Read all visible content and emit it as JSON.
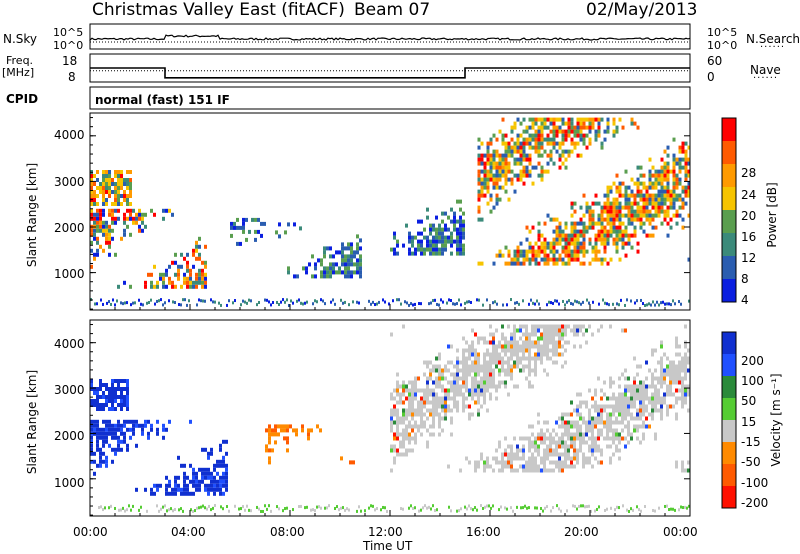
{
  "header": {
    "station": "Christmas Valley East (fitACF)",
    "beam": "Beam 07",
    "date": "02/May/2013"
  },
  "side_labels": {
    "nsky": "N.Sky",
    "nsearch": "N.Search",
    "freq_line1": "Freq.",
    "freq_line2": "[MHz]",
    "nave": "Nave",
    "cpid": "CPID",
    "dots": "......"
  },
  "chart_data": [
    {
      "type": "line",
      "name": "noise",
      "ticks_left": [
        "10^5",
        "10^0"
      ],
      "ticks_right": [
        "10^5",
        "10^0"
      ],
      "series": [
        {
          "name": "N.Sky",
          "style": "solid",
          "level": "~10^1.5"
        },
        {
          "name": "N.Search",
          "style": "dotted",
          "level": "~10^1.5"
        }
      ]
    },
    {
      "type": "line",
      "name": "frequency",
      "yticks_left": [
        "18",
        "8"
      ],
      "yticks_right": [
        "60",
        "0"
      ],
      "series": [
        {
          "name": "Freq.",
          "style": "solid",
          "units": "MHz",
          "segments": [
            {
              "from": "00:00",
              "to": "03:00",
              "value": 13
            },
            {
              "from": "03:00",
              "to": "15:00",
              "value": 9.5
            },
            {
              "from": "15:00",
              "to": "24:00",
              "value": 13
            }
          ]
        },
        {
          "name": "Nave",
          "style": "dotted",
          "value": 24
        }
      ]
    },
    {
      "type": "table",
      "name": "cpid",
      "text": "normal (fast) 151 IF"
    },
    {
      "type": "heatmap",
      "name": "power",
      "ylabel": "Slant Range [km]",
      "yticks": [
        "4000",
        "3000",
        "2000",
        "1000"
      ],
      "ylim": [
        180,
        4500
      ],
      "xlim": [
        "00:00",
        "24:00"
      ],
      "colorbar": {
        "label": "Power [dB]",
        "ticks": [
          "28",
          "24",
          "20",
          "16",
          "12",
          "8",
          "4"
        ],
        "colors": [
          "#ff0000",
          "#ff5a00",
          "#ff9a00",
          "#f6c400",
          "#5a9e4f",
          "#3b8a7a",
          "#2a5db0",
          "#0a1fe0"
        ]
      },
      "features": [
        {
          "t0": 0.0,
          "t1": 1.6,
          "r0": 2500,
          "r1": 3250,
          "level": "high"
        },
        {
          "t0": 0.0,
          "t1": 4.6,
          "r0": 700,
          "r1": 2400,
          "level": "mid-high"
        },
        {
          "t0": 5.6,
          "t1": 7.0,
          "r0": 1400,
          "r1": 2200,
          "level": "mid"
        },
        {
          "t0": 7.4,
          "t1": 10.8,
          "r0": 900,
          "r1": 2100,
          "level": "mid"
        },
        {
          "t0": 12.0,
          "t1": 15.0,
          "r0": 1400,
          "r1": 2600,
          "level": "mid"
        },
        {
          "t0": 15.5,
          "t1": 24.0,
          "r0": 1200,
          "r1": 4400,
          "level": "high"
        }
      ]
    },
    {
      "type": "heatmap",
      "name": "velocity",
      "ylabel": "Slant Range [km]",
      "yticks": [
        "4000",
        "3000",
        "2000",
        "1000"
      ],
      "ylim": [
        180,
        4500
      ],
      "xlim": [
        "00:00",
        "24:00"
      ],
      "xlabel": "Time UT",
      "xticks": [
        "00:00",
        "04:00",
        "08:00",
        "12:00",
        "16:00",
        "20:00",
        "00:00"
      ],
      "colorbar": {
        "label": "Velocity [m s⁻¹]",
        "ticks": [
          "200",
          "100",
          "50",
          "15",
          "-15",
          "-50",
          "-100",
          "-200"
        ],
        "colors": [
          "#1030d0",
          "#2050ff",
          "#2a8a3a",
          "#55cc33",
          "#c8c8c8",
          "#ff8a00",
          "#ff5a00",
          "#ff1000"
        ]
      },
      "features": [
        {
          "t0": 0.0,
          "t1": 1.5,
          "r0": 2500,
          "r1": 3200,
          "value": "positive"
        },
        {
          "t0": 0.0,
          "t1": 5.5,
          "r0": 700,
          "r1": 2300,
          "value": "positive"
        },
        {
          "t0": 7.0,
          "t1": 10.6,
          "r0": 1400,
          "r1": 2200,
          "value": "negative"
        },
        {
          "t0": 12.0,
          "t1": 24.0,
          "r0": 1200,
          "r1": 4400,
          "value": "near-zero"
        },
        {
          "t0": 18.8,
          "t1": 19.4,
          "r0": 3200,
          "r1": 3350,
          "value": "positive"
        }
      ]
    }
  ]
}
